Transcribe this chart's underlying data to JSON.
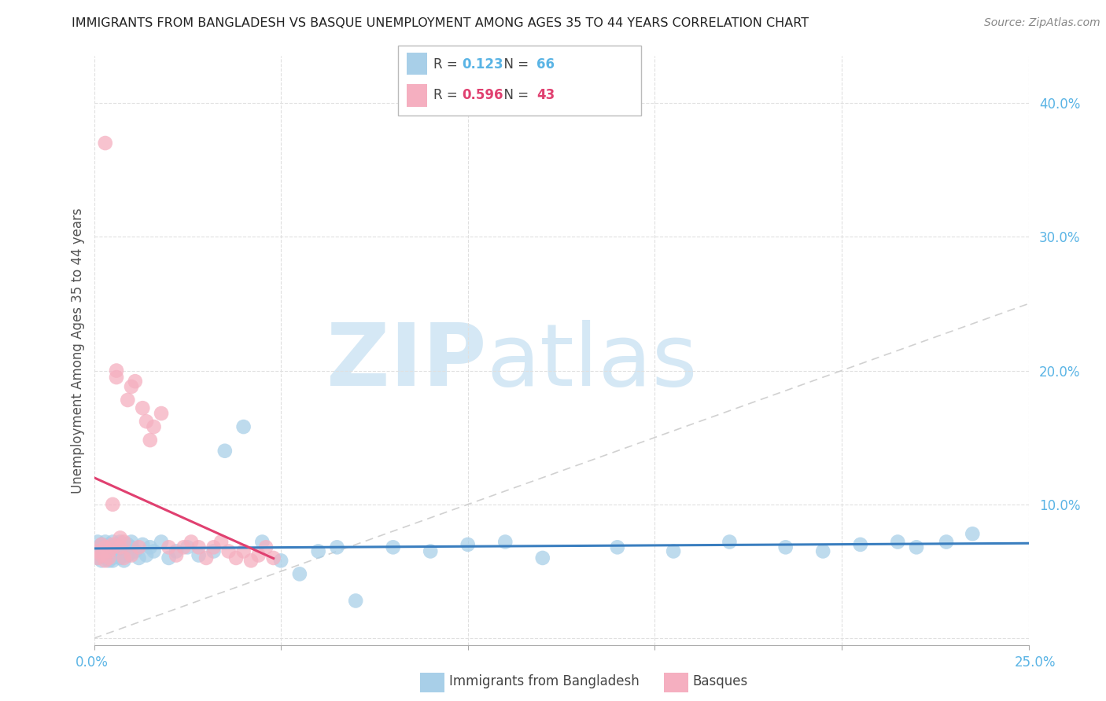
{
  "title": "IMMIGRANTS FROM BANGLADESH VS BASQUE UNEMPLOYMENT AMONG AGES 35 TO 44 YEARS CORRELATION CHART",
  "source": "Source: ZipAtlas.com",
  "ylabel": "Unemployment Among Ages 35 to 44 years",
  "legend1_label": "Immigrants from Bangladesh",
  "legend2_label": "Basques",
  "r1": "0.123",
  "n1": "66",
  "r2": "0.596",
  "n2": "43",
  "color_blue": "#a8cfe8",
  "color_pink": "#f5afc0",
  "color_blue_line": "#3a7ebf",
  "color_pink_line": "#e04070",
  "color_diag": "#cccccc",
  "color_ytick": "#5ab4e5",
  "color_xtick": "#5ab4e5",
  "xlim": [
    0.0,
    0.25
  ],
  "ylim": [
    -0.005,
    0.435
  ],
  "watermark_zip": "ZIP",
  "watermark_atlas": "atlas",
  "watermark_color": "#d5e8f5",
  "background_color": "#ffffff",
  "grid_color": "#e0e0e0",
  "blue_x": [
    0.001,
    0.001,
    0.001,
    0.002,
    0.002,
    0.002,
    0.002,
    0.003,
    0.003,
    0.003,
    0.003,
    0.004,
    0.004,
    0.004,
    0.004,
    0.005,
    0.005,
    0.005,
    0.005,
    0.006,
    0.006,
    0.006,
    0.007,
    0.007,
    0.007,
    0.008,
    0.008,
    0.009,
    0.009,
    0.01,
    0.01,
    0.011,
    0.012,
    0.013,
    0.014,
    0.015,
    0.016,
    0.018,
    0.02,
    0.022,
    0.025,
    0.028,
    0.032,
    0.035,
    0.04,
    0.045,
    0.05,
    0.055,
    0.06,
    0.065,
    0.07,
    0.08,
    0.09,
    0.1,
    0.11,
    0.12,
    0.14,
    0.155,
    0.17,
    0.185,
    0.195,
    0.205,
    0.215,
    0.22,
    0.228,
    0.235
  ],
  "blue_y": [
    0.068,
    0.072,
    0.06,
    0.065,
    0.07,
    0.062,
    0.058,
    0.068,
    0.072,
    0.06,
    0.065,
    0.07,
    0.062,
    0.058,
    0.068,
    0.065,
    0.072,
    0.06,
    0.058,
    0.065,
    0.07,
    0.062,
    0.068,
    0.06,
    0.072,
    0.065,
    0.058,
    0.07,
    0.062,
    0.068,
    0.072,
    0.065,
    0.06,
    0.07,
    0.062,
    0.068,
    0.065,
    0.072,
    0.06,
    0.065,
    0.068,
    0.062,
    0.065,
    0.14,
    0.158,
    0.072,
    0.058,
    0.048,
    0.065,
    0.068,
    0.028,
    0.068,
    0.065,
    0.07,
    0.072,
    0.06,
    0.068,
    0.065,
    0.072,
    0.068,
    0.065,
    0.07,
    0.072,
    0.068,
    0.072,
    0.078
  ],
  "pink_x": [
    0.001,
    0.001,
    0.002,
    0.002,
    0.003,
    0.003,
    0.003,
    0.004,
    0.004,
    0.005,
    0.005,
    0.005,
    0.006,
    0.006,
    0.007,
    0.007,
    0.008,
    0.008,
    0.009,
    0.01,
    0.01,
    0.011,
    0.012,
    0.013,
    0.014,
    0.015,
    0.016,
    0.018,
    0.02,
    0.022,
    0.024,
    0.026,
    0.028,
    0.03,
    0.032,
    0.034,
    0.036,
    0.038,
    0.04,
    0.042,
    0.044,
    0.046,
    0.048
  ],
  "pink_y": [
    0.065,
    0.06,
    0.07,
    0.062,
    0.068,
    0.058,
    0.37,
    0.06,
    0.065,
    0.07,
    0.1,
    0.068,
    0.195,
    0.2,
    0.075,
    0.068,
    0.06,
    0.072,
    0.178,
    0.188,
    0.062,
    0.192,
    0.068,
    0.172,
    0.162,
    0.148,
    0.158,
    0.168,
    0.068,
    0.062,
    0.068,
    0.072,
    0.068,
    0.06,
    0.068,
    0.072,
    0.065,
    0.06,
    0.065,
    0.058,
    0.062,
    0.068,
    0.06
  ]
}
